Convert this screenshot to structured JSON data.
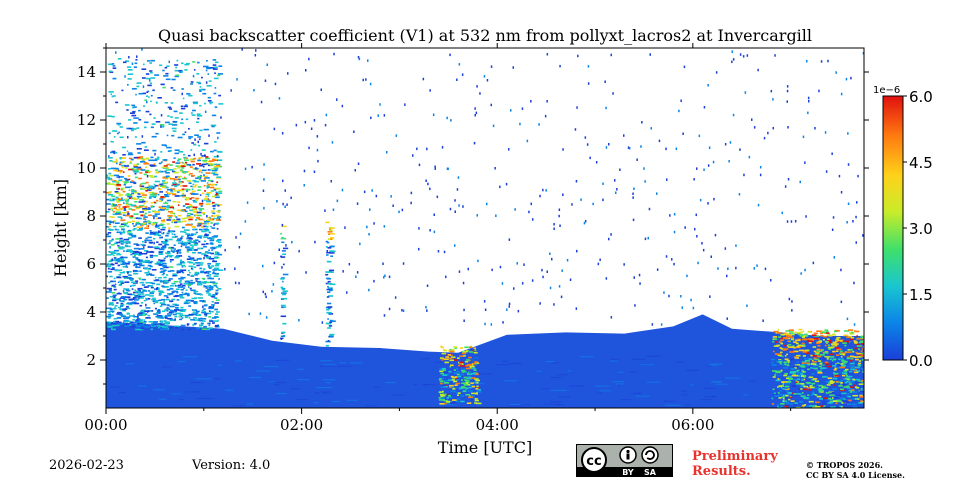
{
  "chart_data": {
    "type": "heatmap",
    "title": "Quasi backscatter coefficient (V1) at 532 nm from pollyxt_lacros2 at Invercargill",
    "xlabel": "Time [UTC]",
    "ylabel": "Height [km]",
    "x_range_hours": [
      0,
      7.75
    ],
    "ylim": [
      0,
      15
    ],
    "x_ticks": [
      {
        "value": 0,
        "label": "00:00"
      },
      {
        "value": 2,
        "label": "02:00"
      },
      {
        "value": 4,
        "label": "04:00"
      },
      {
        "value": 6,
        "label": "06:00"
      }
    ],
    "y_ticks": [
      2,
      4,
      6,
      8,
      10,
      12,
      14
    ],
    "colorbar": {
      "min": 0,
      "max": 6,
      "scale_label": "1e−6",
      "ticks": [
        "0.0",
        "1.5",
        "3.0",
        "4.5",
        "6.0"
      ],
      "colormap": [
        "#1a3fd8",
        "#0b84e8",
        "#19c6cf",
        "#3fe06a",
        "#c8ec2a",
        "#ffd21a",
        "#ff7a10",
        "#e01010"
      ]
    },
    "boundary_layer_top_km": [
      {
        "t": 0.0,
        "h": 3.6
      },
      {
        "t": 1.2,
        "h": 3.3
      },
      {
        "t": 1.7,
        "h": 2.8
      },
      {
        "t": 2.2,
        "h": 2.55
      },
      {
        "t": 2.8,
        "h": 2.5
      },
      {
        "t": 3.3,
        "h": 2.35
      },
      {
        "t": 3.6,
        "h": 2.3
      },
      {
        "t": 4.1,
        "h": 3.05
      },
      {
        "t": 4.7,
        "h": 3.15
      },
      {
        "t": 5.3,
        "h": 3.1
      },
      {
        "t": 5.8,
        "h": 3.4
      },
      {
        "t": 6.1,
        "h": 3.9
      },
      {
        "t": 6.4,
        "h": 3.3
      },
      {
        "t": 6.9,
        "h": 3.15
      },
      {
        "t": 7.3,
        "h": 3.0
      },
      {
        "t": 7.75,
        "h": 3.0
      }
    ],
    "features": [
      {
        "name": "cirrus cloud",
        "t_start": 0.0,
        "t_end": 1.15,
        "h_bottom": 3.3,
        "h_top": 14.6,
        "peak": 6.0
      },
      {
        "name": "thin cloud column",
        "t_start": 1.78,
        "t_end": 1.81,
        "h_bottom": 2.8,
        "h_top": 7.8,
        "peak": 4.0
      },
      {
        "name": "thin cloud column",
        "t_start": 2.24,
        "t_end": 2.3,
        "h_bottom": 2.6,
        "h_top": 7.8,
        "peak": 5.0
      },
      {
        "name": "low cloud",
        "t_start": 3.4,
        "t_end": 3.8,
        "h_bottom": 0.2,
        "h_top": 2.6,
        "peak": 6.0
      },
      {
        "name": "low cloud",
        "t_start": 6.8,
        "t_end": 7.75,
        "h_bottom": 0.0,
        "h_top": 3.3,
        "peak": 6.0
      }
    ]
  },
  "footer": {
    "date": "2026-02-23",
    "version": "Version: 4.0",
    "license_badge": {
      "cc": "cc",
      "by": "BY",
      "sa": "SA"
    },
    "preliminary_line1": "Preliminary",
    "preliminary_line2": "Results.",
    "copyright_line1": "© TROPOS 2026.",
    "copyright_line2": "CC BY SA 4.0 License."
  }
}
